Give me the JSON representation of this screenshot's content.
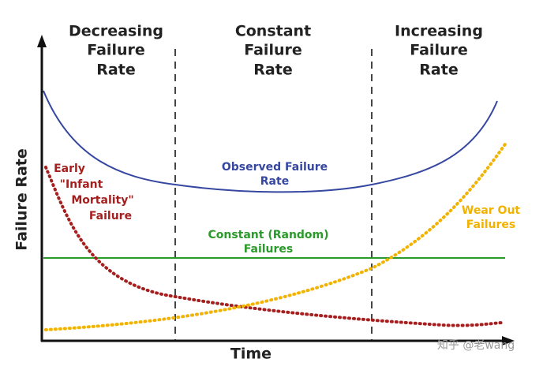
{
  "regions": [
    {
      "lines": [
        "Decreasing",
        "Failure",
        "Rate"
      ]
    },
    {
      "lines": [
        "Constant",
        "Failure",
        "Rate"
      ]
    },
    {
      "lines": [
        "Increasing",
        "Failure",
        "Rate"
      ]
    }
  ],
  "axes": {
    "y_label": "Failure Rate",
    "x_label": "Time"
  },
  "curves": {
    "observed": {
      "lines": [
        "Observed Failure",
        "Rate"
      ]
    },
    "early": {
      "lines": [
        "Early",
        "\"Infant",
        "Mortality\"",
        "Failure"
      ]
    },
    "constant": {
      "lines": [
        "Constant (Random)",
        "Failures"
      ]
    },
    "wear_out": {
      "lines": [
        "Wear Out",
        "Failures"
      ]
    }
  },
  "watermark": "知乎 @老wang"
}
